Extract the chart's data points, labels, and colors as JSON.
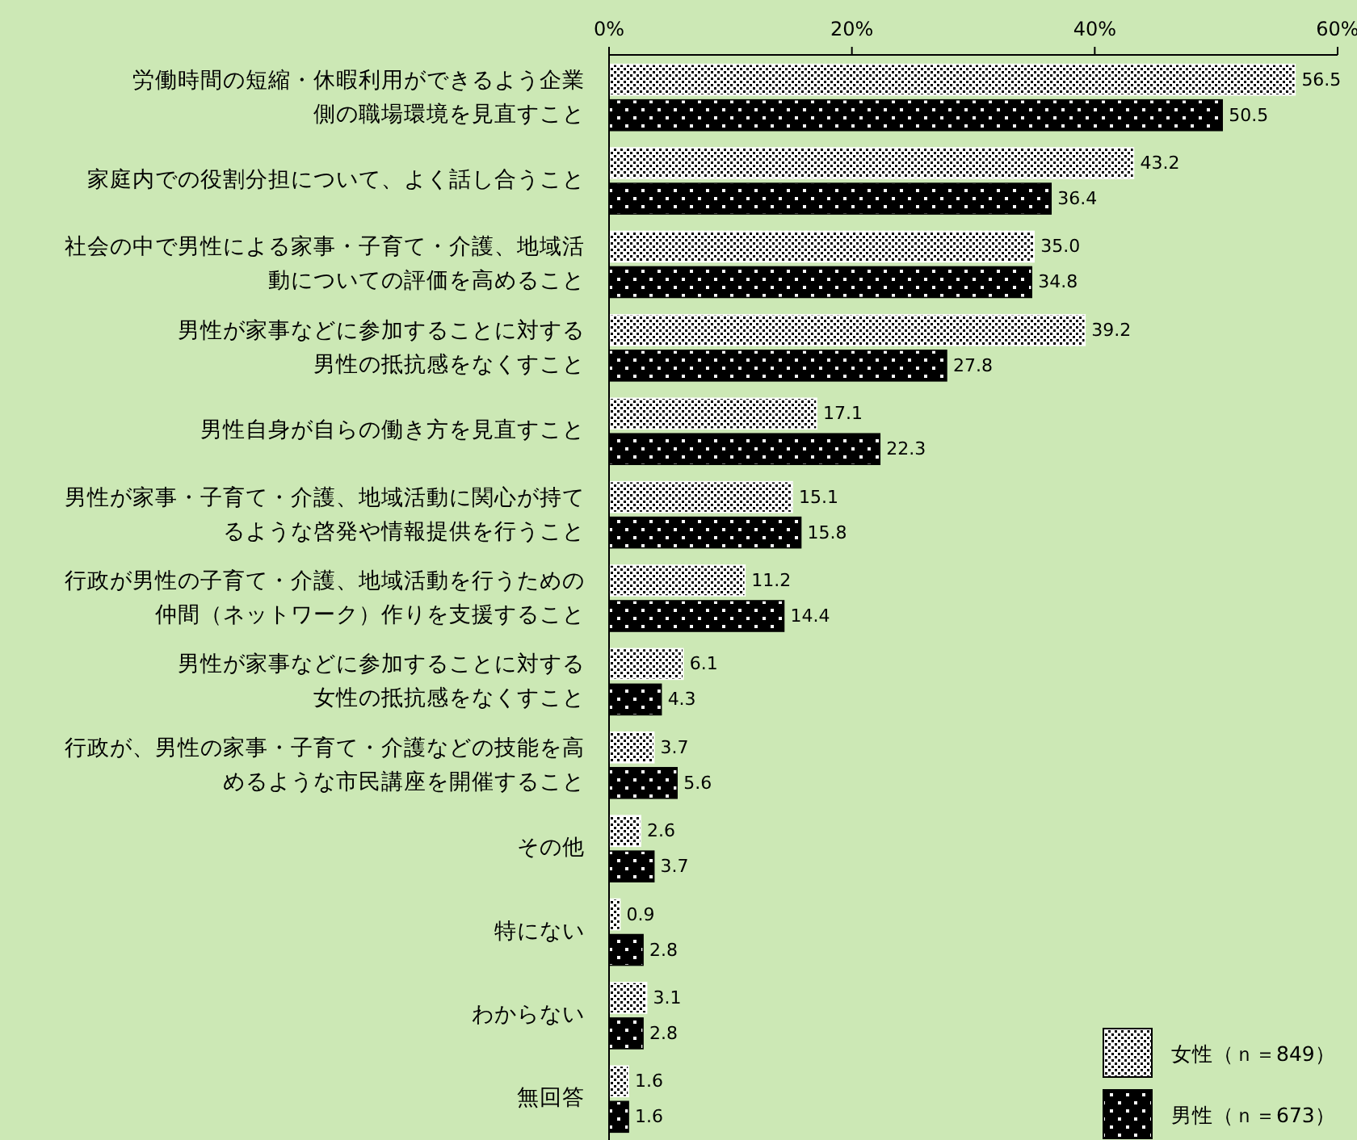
{
  "chart_data": {
    "type": "bar",
    "orientation": "horizontal",
    "categories": [
      "労働時間の短縮・休暇利用ができるよう企業側の職場環境を見直すこと",
      "家庭内での役割分担について、よく話し合うこと",
      "社会の中で男性による家事・子育て・介護、地域活動についての評価を高めること",
      "男性が家事などに参加することに対する男性の抵抗感をなくすこと",
      "男性自身が自らの働き方を見直すこと",
      "男性が家事・子育て・介護、地域活動に関心が持てるような啓発や情報提供を行うこと",
      "行政が男性の子育て・介護、地域活動を行うための仲間（ネットワーク）作りを支援すること",
      "男性が家事などに参加することに対する女性の抵抗感をなくすこと",
      "行政が、男性の家事・子育て・介護などの技能を高めるような市民講座を開催すること",
      "その他",
      "特にない",
      "わからない",
      "無回答"
    ],
    "series": [
      {
        "name": "女性（ｎ＝849）",
        "color": "#ffffff",
        "values": [
          56.5,
          43.2,
          35.0,
          39.2,
          17.1,
          15.1,
          11.2,
          6.1,
          3.7,
          2.6,
          0.9,
          3.1,
          1.6
        ],
        "value_labels": [
          "56.5",
          "43.2",
          "35.0",
          "39.2",
          "17.1",
          "15.1",
          "11.2",
          "6.1",
          "3.7",
          "2.6",
          "0.9",
          "3.1",
          "1.6"
        ]
      },
      {
        "name": "男性（ｎ＝673）",
        "color": "#000000",
        "values": [
          50.5,
          36.4,
          34.8,
          27.8,
          22.3,
          15.8,
          14.4,
          4.3,
          5.6,
          3.7,
          2.8,
          2.8,
          1.6
        ],
        "value_labels": [
          "50.5",
          "36.4",
          "34.8",
          "27.8",
          "22.3",
          "15.8",
          "14.4",
          "4.3",
          "5.6",
          "3.7",
          "2.8",
          "2.8",
          "1.6"
        ]
      }
    ],
    "xlim": [
      0,
      60
    ],
    "xticks": [
      {
        "value": 0,
        "label": "0%"
      },
      {
        "value": 20,
        "label": "20%"
      },
      {
        "value": 40,
        "label": "40%"
      },
      {
        "value": 60,
        "label": "60%"
      }
    ],
    "legend": "bottom right",
    "grid": false
  }
}
